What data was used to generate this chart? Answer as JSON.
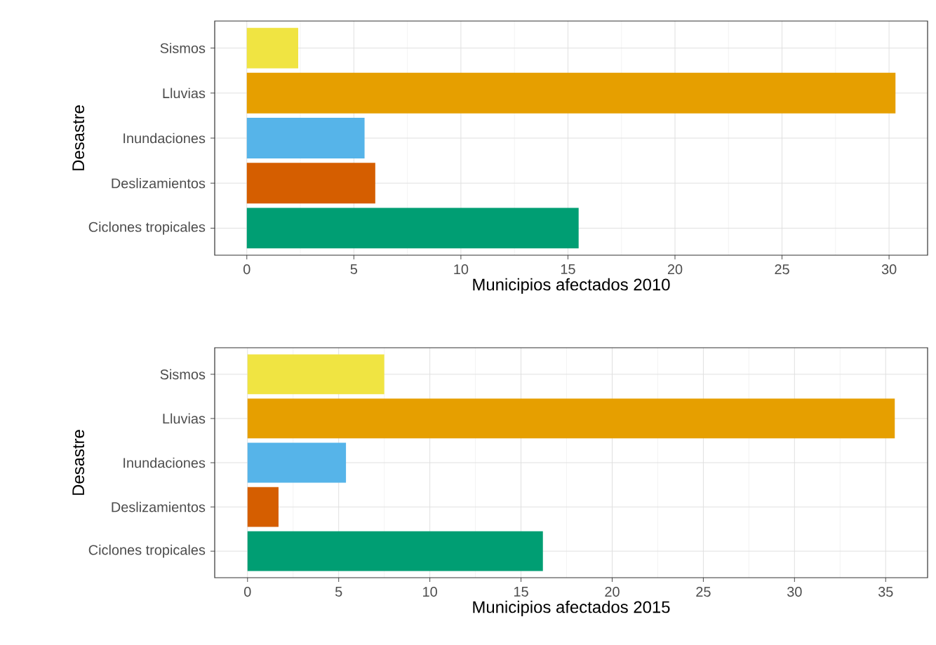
{
  "chart_data": [
    {
      "type": "bar",
      "orientation": "horizontal",
      "categories": [
        "Sismos",
        "Lluvias",
        "Inundaciones",
        "Deslizamientos",
        "Ciclones tropicales"
      ],
      "values": [
        2.4,
        30.3,
        5.5,
        6.0,
        15.5
      ],
      "colors": [
        "#f0e442",
        "#e69f00",
        "#56b4e9",
        "#d55e00",
        "#009e73"
      ],
      "xlim": [
        -1.5,
        31.8
      ],
      "xticks": [
        0,
        5,
        10,
        15,
        20,
        25,
        30
      ],
      "xlabel": "Municipios afectados 2010",
      "ylabel": "Desastre",
      "grid": true
    },
    {
      "type": "bar",
      "orientation": "horizontal",
      "categories": [
        "Sismos",
        "Lluvias",
        "Inundaciones",
        "Deslizamientos",
        "Ciclones tropicales"
      ],
      "values": [
        7.5,
        35.5,
        5.4,
        1.7,
        16.2
      ],
      "colors": [
        "#f0e442",
        "#e69f00",
        "#56b4e9",
        "#d55e00",
        "#009e73"
      ],
      "xlim": [
        -1.8,
        37.3
      ],
      "xticks": [
        0,
        5,
        10,
        15,
        20,
        25,
        30,
        35
      ],
      "xlabel": "Municipios afectados 2015",
      "ylabel": "Desastre",
      "grid": true
    }
  ]
}
